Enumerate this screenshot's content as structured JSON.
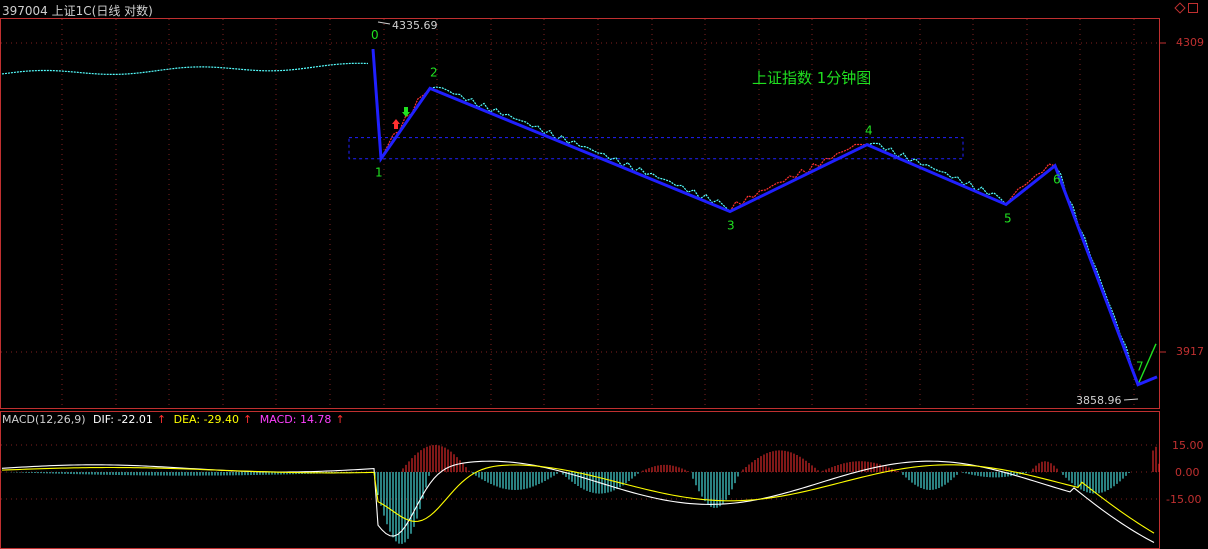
{
  "header": {
    "code": "397004",
    "name": "上证1C",
    "mode": "(日线 对数)"
  },
  "colors": {
    "background": "#000000",
    "up": "#ff3030",
    "down": "#55ffff",
    "wave": "#2020ff",
    "label": "#20e020",
    "axis": "#c03030",
    "dif": "#ffffff",
    "dea": "#ffff00",
    "macd": "#ff40ff"
  },
  "price_panel": {
    "annotation": "上证指数 1分钟图",
    "high_label": "4335.69",
    "low_label": "3858.96",
    "y_ticks": [
      "4309",
      "3917"
    ]
  },
  "chart_data": [
    {
      "type": "line",
      "name": "price-wave",
      "ylim": [
        3840,
        4360
      ],
      "wave_points": [
        {
          "label": "0",
          "y": 4335.69
        },
        {
          "label": "1",
          "y": 4180
        },
        {
          "label": "2",
          "y": 4280
        },
        {
          "label": "3",
          "y": 4105
        },
        {
          "label": "4",
          "y": 4200
        },
        {
          "label": "5",
          "y": 4115
        },
        {
          "label": "6",
          "y": 4170
        },
        {
          "label": "7",
          "y": 3858.96
        }
      ],
      "zone": {
        "y_top": 4210,
        "y_bottom": 4180
      }
    },
    {
      "type": "bar",
      "name": "MACD(12,26,9)",
      "ylim": [
        -30,
        30
      ],
      "y_ticks": [
        "15.00",
        "0.00",
        "-15.00"
      ],
      "series": [
        {
          "name": "DIF",
          "last": -22.01
        },
        {
          "name": "DEA",
          "last": -29.4
        },
        {
          "name": "MACD",
          "last": 14.78
        }
      ]
    }
  ],
  "macd_panel": {
    "title": "MACD(12,26,9)",
    "dif_label": "DIF: -22.01",
    "dea_label": "DEA: -29.40",
    "macd_label": "MACD: 14.78"
  }
}
